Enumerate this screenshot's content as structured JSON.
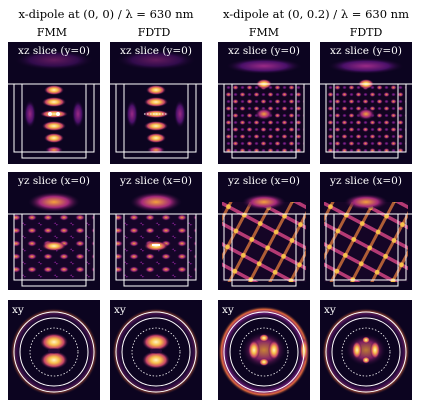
{
  "colors": {
    "background": "#ffffff",
    "outline": "#ffffff",
    "dark": "#0b0420",
    "mid": "#7b1f86",
    "bright": "#f0a73a",
    "hot": "#fff2b6"
  },
  "groups": [
    {
      "title": "x-dipole at (0, 0) / λ = 630 nm",
      "columns": [
        {
          "label": "FMM"
        },
        {
          "label": "FDTD"
        }
      ]
    },
    {
      "title": "x-dipole at (0, 0.2) / λ = 630 nm",
      "columns": [
        {
          "label": "FMM"
        },
        {
          "label": "FDTD"
        }
      ]
    }
  ],
  "panel_labels": {
    "xz": "xz slice (y=0)",
    "yz": "yz slice (x=0)",
    "xy": "xy"
  }
}
